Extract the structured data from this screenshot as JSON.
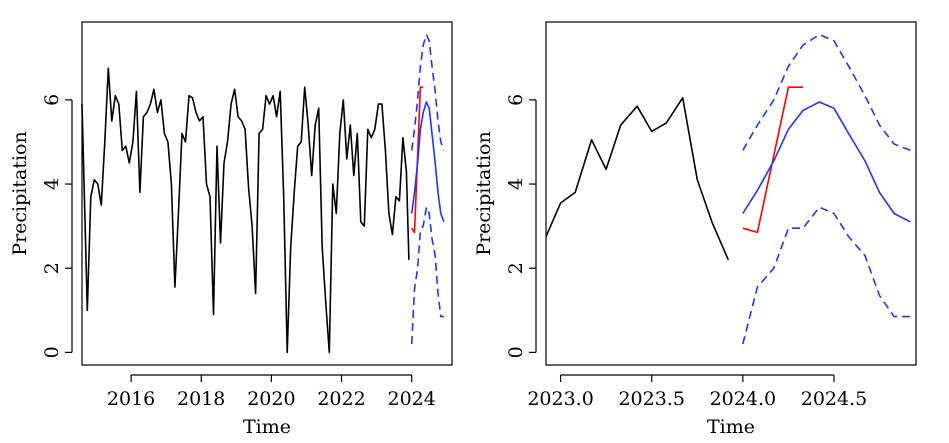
{
  "chart_data": [
    {
      "type": "line",
      "xlabel": "Time",
      "ylabel": "Precipitation",
      "xlim": [
        2014.6,
        2025.15
      ],
      "ylim": [
        -0.3,
        7.85
      ],
      "xticks": [
        2016,
        2018,
        2020,
        2022,
        2024
      ],
      "yticks": [
        0,
        2,
        4,
        6
      ],
      "series": [
        {
          "color": "#000000",
          "dash": "solid",
          "x": [
            2014.6,
            2014.75,
            2014.85,
            2014.95,
            2015.05,
            2015.15,
            2015.25,
            2015.35,
            2015.45,
            2015.55,
            2015.65,
            2015.75,
            2015.85,
            2015.95,
            2016.05,
            2016.15,
            2016.25,
            2016.35,
            2016.45,
            2016.55,
            2016.65,
            2016.75,
            2016.85,
            2016.95,
            2017.05,
            2017.15,
            2017.25,
            2017.35,
            2017.45,
            2017.55,
            2017.65,
            2017.75,
            2017.85,
            2017.95,
            2018.05,
            2018.15,
            2018.25,
            2018.35,
            2018.45,
            2018.55,
            2018.65,
            2018.75,
            2018.85,
            2018.95,
            2019.05,
            2019.15,
            2019.25,
            2019.35,
            2019.45,
            2019.55,
            2019.65,
            2019.75,
            2019.85,
            2019.95,
            2020.05,
            2020.15,
            2020.25,
            2020.35,
            2020.45,
            2020.55,
            2020.65,
            2020.75,
            2020.85,
            2020.95,
            2021.05,
            2021.15,
            2021.25,
            2021.35,
            2021.45,
            2021.55,
            2021.65,
            2021.75,
            2021.85,
            2021.95,
            2022.05,
            2022.15,
            2022.25,
            2022.35,
            2022.45,
            2022.55,
            2022.65,
            2022.75,
            2022.85,
            2022.95,
            2023.05,
            2023.15,
            2023.25,
            2023.35,
            2023.45,
            2023.55,
            2023.65,
            2023.75,
            2023.85,
            2023.92
          ],
          "y": [
            5.9,
            1.0,
            3.7,
            4.1,
            4.0,
            3.5,
            5.0,
            6.75,
            5.5,
            6.1,
            5.9,
            4.8,
            4.9,
            4.5,
            5.0,
            6.2,
            3.8,
            5.6,
            5.7,
            5.9,
            6.25,
            5.7,
            6.0,
            5.2,
            5.0,
            4.0,
            1.55,
            3.3,
            5.2,
            5.0,
            6.1,
            6.05,
            5.7,
            5.5,
            5.6,
            4.0,
            3.7,
            0.9,
            4.9,
            2.6,
            4.5,
            5.0,
            5.9,
            6.25,
            5.6,
            5.5,
            5.3,
            3.9,
            3.0,
            1.4,
            5.2,
            5.3,
            6.1,
            5.9,
            6.1,
            5.6,
            6.2,
            3.7,
            0.0,
            2.5,
            3.8,
            4.9,
            5.0,
            6.3,
            5.4,
            4.2,
            5.4,
            5.8,
            2.5,
            1.2,
            0.0,
            4.0,
            3.3,
            5.2,
            6.0,
            4.6,
            5.4,
            4.2,
            5.2,
            3.1,
            3.0,
            5.3,
            5.1,
            5.3,
            5.9,
            5.9,
            4.8,
            3.3,
            2.8,
            3.7,
            3.6,
            5.1,
            4.3,
            2.2
          ]
        },
        {
          "color": "#ff0000",
          "dash": "solid",
          "x": [
            2024.0,
            2024.08,
            2024.25,
            2024.33
          ],
          "y": [
            2.95,
            2.85,
            6.3,
            6.3
          ]
        },
        {
          "color": "#2233ff",
          "dash": "solid",
          "x": [
            2024.0,
            2024.08,
            2024.17,
            2024.25,
            2024.33,
            2024.42,
            2024.5,
            2024.58,
            2024.67,
            2024.75,
            2024.83,
            2024.92
          ],
          "y": [
            3.3,
            3.8,
            4.5,
            5.3,
            5.7,
            5.95,
            5.8,
            5.2,
            4.5,
            3.8,
            3.3,
            3.1
          ]
        },
        {
          "color": "#2233ff",
          "dash": "dashed",
          "x": [
            2024.0,
            2024.08,
            2024.17,
            2024.25,
            2024.33,
            2024.42,
            2024.5,
            2024.58,
            2024.67,
            2024.75,
            2024.83,
            2024.92
          ],
          "y": [
            4.8,
            5.3,
            6.0,
            6.8,
            7.3,
            7.55,
            7.4,
            6.8,
            6.2,
            5.5,
            5.0,
            4.8
          ]
        },
        {
          "color": "#2233ff",
          "dash": "dashed",
          "x": [
            2024.0,
            2024.08,
            2024.17,
            2024.25,
            2024.33,
            2024.42,
            2024.5,
            2024.58,
            2024.67,
            2024.75,
            2024.83,
            2024.92
          ],
          "y": [
            0.2,
            1.5,
            2.0,
            2.9,
            3.0,
            3.45,
            3.3,
            2.7,
            2.3,
            1.4,
            0.85,
            0.85
          ]
        }
      ]
    },
    {
      "type": "line",
      "xlabel": "Time",
      "ylabel": "Precipitation",
      "xlim": [
        2022.92,
        2024.95
      ],
      "ylim": [
        -0.3,
        7.85
      ],
      "xticks": [
        2023.0,
        2023.5,
        2024.0,
        2024.5
      ],
      "xtick_labels": [
        "2023.0",
        "2023.5",
        "2024.0",
        "2024.5"
      ],
      "yticks": [
        0,
        2,
        4,
        6
      ],
      "series": [
        {
          "color": "#000000",
          "dash": "solid",
          "x": [
            2022.92,
            2023.0,
            2023.08,
            2023.17,
            2023.25,
            2023.33,
            2023.42,
            2023.5,
            2023.58,
            2023.67,
            2023.75,
            2023.83,
            2023.92
          ],
          "y": [
            2.75,
            3.55,
            3.8,
            5.05,
            4.35,
            5.4,
            5.85,
            5.25,
            5.45,
            6.05,
            4.1,
            3.1,
            2.2
          ]
        },
        {
          "color": "#ff0000",
          "dash": "solid",
          "x": [
            2024.0,
            2024.08,
            2024.25,
            2024.33
          ],
          "y": [
            2.95,
            2.85,
            6.3,
            6.3
          ]
        },
        {
          "color": "#2233ff",
          "dash": "solid",
          "x": [
            2024.0,
            2024.08,
            2024.17,
            2024.25,
            2024.33,
            2024.42,
            2024.5,
            2024.58,
            2024.67,
            2024.75,
            2024.83,
            2024.92
          ],
          "y": [
            3.3,
            3.85,
            4.55,
            5.3,
            5.75,
            5.95,
            5.8,
            5.2,
            4.55,
            3.8,
            3.3,
            3.1
          ]
        },
        {
          "color": "#2233ff",
          "dash": "dashed",
          "x": [
            2024.0,
            2024.08,
            2024.17,
            2024.25,
            2024.33,
            2024.42,
            2024.5,
            2024.58,
            2024.67,
            2024.75,
            2024.83,
            2024.92
          ],
          "y": [
            4.8,
            5.4,
            6.0,
            6.8,
            7.3,
            7.55,
            7.4,
            6.8,
            6.1,
            5.4,
            4.95,
            4.8
          ]
        },
        {
          "color": "#2233ff",
          "dash": "dashed",
          "x": [
            2024.0,
            2024.08,
            2024.17,
            2024.25,
            2024.33,
            2024.42,
            2024.5,
            2024.58,
            2024.67,
            2024.75,
            2024.83,
            2024.92
          ],
          "y": [
            0.2,
            1.55,
            2.0,
            2.95,
            2.95,
            3.45,
            3.3,
            2.75,
            2.3,
            1.35,
            0.85,
            0.85
          ]
        }
      ]
    }
  ]
}
